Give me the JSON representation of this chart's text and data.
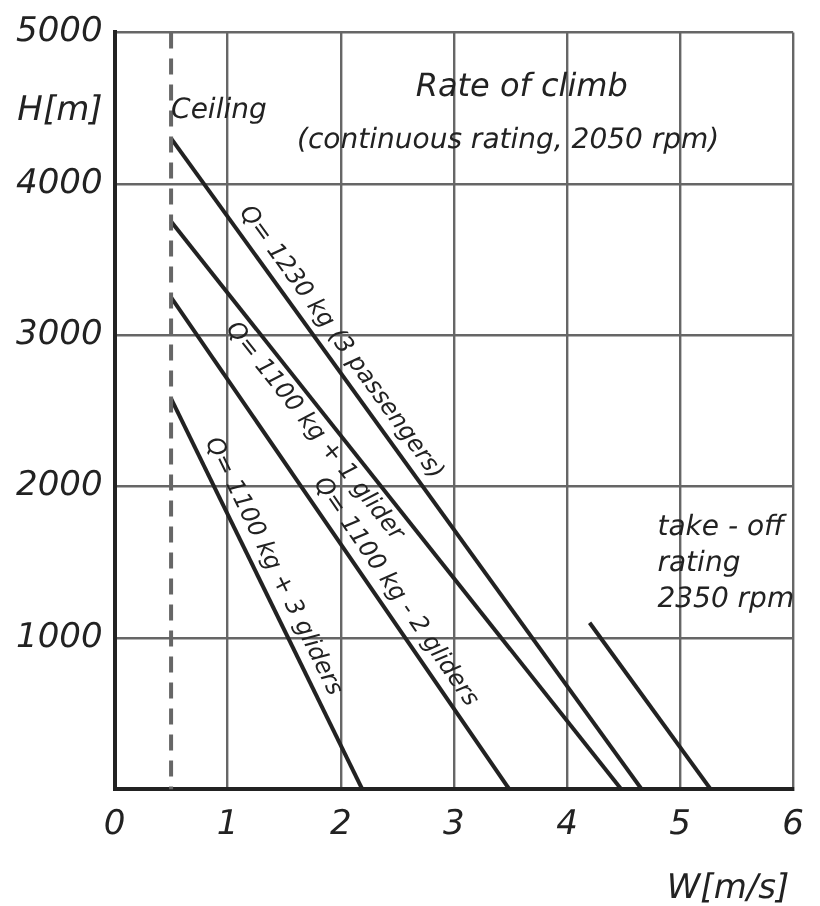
{
  "chart_data": {
    "type": "line",
    "title": "Rate of climb",
    "subtitle": "(continuous rating, 2050 rpm)",
    "xlabel": "W[m/s]",
    "ylabel": "H[m]",
    "xlim": [
      0,
      6
    ],
    "ylim": [
      0,
      5000
    ],
    "xticks": [
      0,
      1,
      2,
      3,
      4,
      5,
      6
    ],
    "yticks": [
      {
        "value": 0,
        "label": null
      },
      1000,
      2000,
      3000,
      4000,
      5000
    ],
    "grid": true,
    "legend": false,
    "marker": "none",
    "line_style": "solid",
    "series": [
      {
        "name": "Q= 1230 kg (3 passengers)",
        "color": "#222222",
        "x": [
          0.5,
          4.66
        ],
        "values": [
          4300,
          0
        ]
      },
      {
        "name": "Q= 1100 kg + 1 glider",
        "color": "#222222",
        "x": [
          0.5,
          4.48
        ],
        "values": [
          3750,
          0
        ]
      },
      {
        "name": "Q= 1100 kg - 2 gliders",
        "color": "#222222",
        "x": [
          0.5,
          3.49
        ],
        "values": [
          3250,
          0
        ]
      },
      {
        "name": "Q= 1100 kg + 3 gliders",
        "color": "#222222",
        "x": [
          0.5,
          2.19
        ],
        "values": [
          2580,
          0
        ]
      },
      {
        "color": "#222222",
        "x": [
          4.2,
          5.27
        ],
        "values": [
          1100,
          0
        ]
      }
    ],
    "ref_lines": [
      {
        "axis": "x",
        "value": 0.5,
        "line_style": "dashed",
        "color": "#666666"
      }
    ],
    "annotations": [
      {
        "text": "Ceiling",
        "x": 0.5,
        "y": 4300
      },
      "take - off rating 2350 rpm"
    ]
  }
}
